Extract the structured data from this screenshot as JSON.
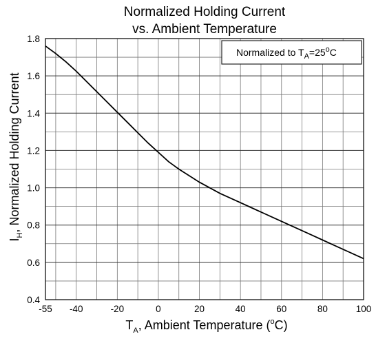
{
  "chart_data": {
    "type": "line",
    "title_lines": [
      "Normalized Holding Current",
      "vs. Ambient Temperature"
    ],
    "annotation": {
      "prefix": "Normalized to T",
      "subscript": "A",
      "middle": "=25",
      "superscript": "o",
      "suffix": "C"
    },
    "xlabel": {
      "prefix": "T",
      "subscript": "A",
      "middle": ", Ambient Temperature (",
      "superscript": "o",
      "suffix": "C)"
    },
    "ylabel": {
      "prefix": "I",
      "subscript": "H",
      "suffix": ", Normalized Holding Current"
    },
    "xlim": [
      -55,
      100
    ],
    "ylim": [
      0.4,
      1.8
    ],
    "x_ticks": [
      -55,
      -40,
      -20,
      0,
      20,
      40,
      60,
      80,
      100
    ],
    "x_tick_labels": [
      "-55",
      "-40",
      "-20",
      "0",
      "20",
      "40",
      "60",
      "80",
      "100"
    ],
    "y_ticks": [
      0.4,
      0.6,
      0.8,
      1.0,
      1.2,
      1.4,
      1.6,
      1.8
    ],
    "y_tick_labels": [
      "0.4",
      "0.6",
      "0.8",
      "1.0",
      "1.2",
      "1.4",
      "1.6",
      "1.8"
    ],
    "grid": true,
    "series": [
      {
        "x": [
          -55,
          -50,
          -45,
          -40,
          -35,
          -30,
          -25,
          -20,
          -15,
          -10,
          -5,
          0,
          5,
          10,
          15,
          20,
          25,
          30,
          35,
          40,
          45,
          50,
          55,
          60,
          65,
          70,
          75,
          80,
          85,
          90,
          95,
          100
        ],
        "y": [
          1.76,
          1.72,
          1.675,
          1.625,
          1.57,
          1.515,
          1.46,
          1.405,
          1.35,
          1.295,
          1.24,
          1.19,
          1.14,
          1.1,
          1.065,
          1.03,
          1.0,
          0.97,
          0.945,
          0.92,
          0.895,
          0.87,
          0.845,
          0.82,
          0.795,
          0.77,
          0.745,
          0.72,
          0.695,
          0.67,
          0.645,
          0.62
        ]
      }
    ]
  }
}
